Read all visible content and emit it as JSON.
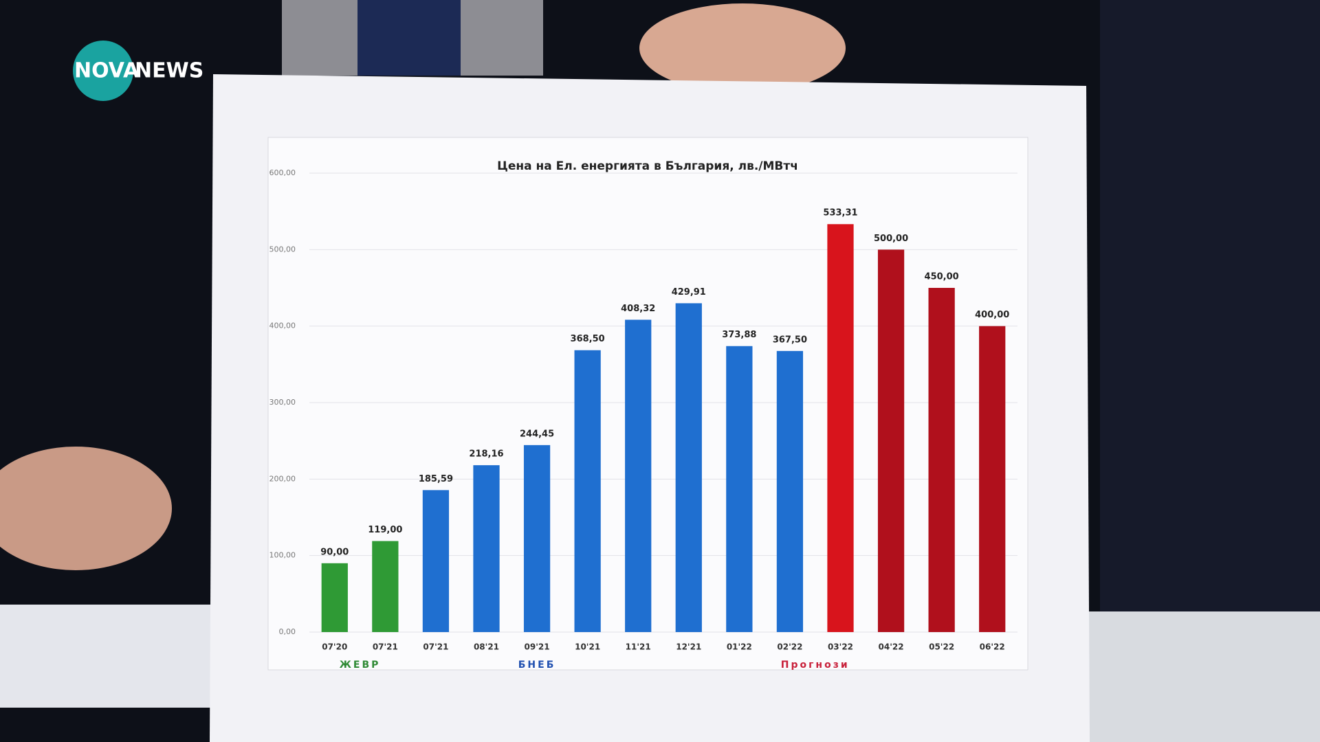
{
  "logo": {
    "left": "NOVA",
    "right": "NEWS"
  },
  "chart_data": {
    "type": "bar",
    "title": "Цена на Ел. енергията в България, лв./МВтч",
    "categories": [
      "07'20",
      "07'21",
      "07'21",
      "08'21",
      "09'21",
      "10'21",
      "11'21",
      "12'21",
      "01'22",
      "02'22",
      "03'22",
      "04'22",
      "05'22",
      "06'22"
    ],
    "values": [
      90,
      119,
      185.59,
      218.16,
      244.45,
      368.5,
      408.32,
      429.91,
      373.88,
      367.5,
      533.31,
      500,
      450,
      400
    ],
    "value_labels": [
      "90,00",
      "119,00",
      "185,59",
      "218,16",
      "244,45",
      "368,50",
      "408,32",
      "429,91",
      "373,88",
      "367,50",
      "533,31",
      "500,00",
      "450,00",
      "400,00"
    ],
    "colors": [
      "#2f9a35",
      "#2f9a35",
      "#1f6fd0",
      "#1f6fd0",
      "#1f6fd0",
      "#1f6fd0",
      "#1f6fd0",
      "#1f6fd0",
      "#1f6fd0",
      "#1f6fd0",
      "#d8141c",
      "#b0101c",
      "#b0101c",
      "#b0101c"
    ],
    "ylim": [
      0,
      600
    ],
    "yticks": [
      {
        "value": 0,
        "label": "0,00"
      },
      {
        "value": 100,
        "label": "100,00"
      },
      {
        "value": 200,
        "label": "200,00"
      },
      {
        "value": 300,
        "label": "300,00"
      },
      {
        "value": 400,
        "label": "400,00"
      },
      {
        "value": 500,
        "label": "500,00"
      },
      {
        "value": 600,
        "label": "600,00"
      }
    ],
    "grid": true,
    "annotations": [
      {
        "text": "ЖЕВР",
        "color": "#2f8a35"
      },
      {
        "text": "БНЕБ",
        "color": "#2050b0"
      },
      {
        "text": "Прогнози",
        "color": "#c8203a"
      }
    ]
  }
}
